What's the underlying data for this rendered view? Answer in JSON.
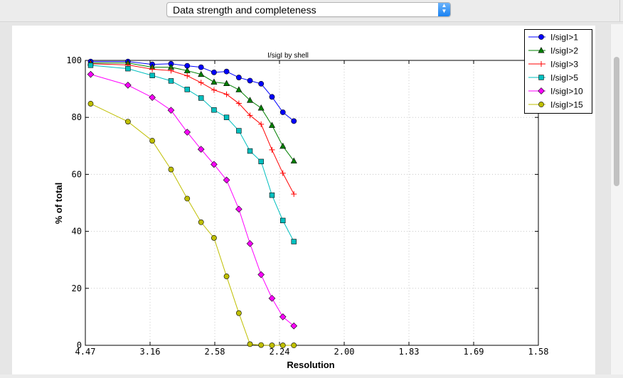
{
  "toolbar": {
    "dropdown_value": "Data strength and completeness"
  },
  "chart_data": {
    "type": "line",
    "title": "I/sigI by shell",
    "xlabel": "Resolution",
    "ylabel": "% of total",
    "x_tick_labels": [
      "4.47",
      "3.16",
      "2.58",
      "2.24",
      "2.00",
      "1.83",
      "1.69",
      "1.58"
    ],
    "y_ticks": [
      0,
      20,
      40,
      60,
      80,
      100
    ],
    "ylim": [
      0,
      100
    ],
    "grid": true,
    "legend_position": "top-right",
    "x": [
      0.0541,
      0.0829,
      0.1017,
      0.1162,
      0.1287,
      0.1394,
      0.1494,
      0.1591,
      0.1686,
      0.1772,
      0.1858,
      0.1942,
      0.2026,
      0.2111
    ],
    "x_values_note_units": "1/d^2",
    "series": [
      {
        "name": "I/sigI>1",
        "color": "#0000ff",
        "marker": "circle",
        "values": [
          99.6,
          99.6,
          98.6,
          98.8,
          98.1,
          97.6,
          95.8,
          96.1,
          94.0,
          92.9,
          91.8,
          87.2,
          81.8,
          78.7
        ]
      },
      {
        "name": "I/sigI>2",
        "color": "#008000",
        "marker": "triangle",
        "values": [
          99.1,
          99.1,
          97.6,
          97.6,
          96.4,
          95.1,
          92.4,
          91.9,
          89.7,
          86.0,
          83.3,
          77.2,
          69.9,
          64.7
        ]
      },
      {
        "name": "I/sigI>3",
        "color": "#ff0000",
        "marker": "plus",
        "values": [
          98.8,
          98.4,
          96.9,
          96.4,
          94.6,
          92.2,
          89.6,
          88.1,
          84.9,
          80.7,
          77.6,
          68.6,
          60.4,
          53.1
        ]
      },
      {
        "name": "I/sigI>5",
        "color": "#00bfbf",
        "marker": "square",
        "values": [
          98.3,
          97.1,
          94.7,
          92.8,
          89.8,
          86.8,
          82.6,
          80.0,
          75.3,
          68.2,
          64.5,
          52.7,
          43.8,
          36.4
        ]
      },
      {
        "name": "I/sigI>10",
        "color": "#ff00ff",
        "marker": "diamond",
        "values": [
          95.1,
          91.3,
          87.0,
          82.5,
          74.8,
          68.8,
          63.5,
          58.0,
          47.8,
          35.7,
          24.8,
          16.5,
          10.0,
          6.8
        ]
      },
      {
        "name": "I/sigI>15",
        "color": "#bfbf00",
        "marker": "circle",
        "values": [
          84.8,
          78.5,
          71.8,
          61.7,
          51.5,
          43.2,
          37.7,
          24.2,
          11.3,
          0.4,
          0.1,
          0.0,
          0.0,
          0.0
        ]
      }
    ]
  }
}
